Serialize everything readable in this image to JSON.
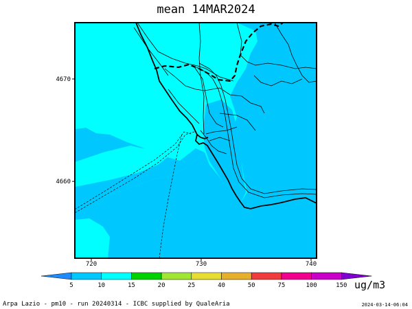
{
  "title": "mean 14MAR2024",
  "map": {
    "y_axis_ticks": [
      {
        "value": 4670,
        "label": "4670"
      },
      {
        "value": 4660,
        "label": "4660"
      }
    ],
    "x_axis_ticks": [
      {
        "value": 720,
        "label": "720"
      },
      {
        "value": 730,
        "label": "730"
      },
      {
        "value": 740,
        "label": "740"
      }
    ],
    "x_range": [
      718.5,
      740.5
    ],
    "y_range": [
      4652.5,
      4675.5
    ]
  },
  "colorbar": {
    "labels": [
      "5",
      "10",
      "15",
      "20",
      "25",
      "40",
      "50",
      "75",
      "100",
      "150"
    ],
    "colors": [
      "#00c8ff",
      "#00ffff",
      "#00d200",
      "#a0e632",
      "#e6dc32",
      "#e6af2d",
      "#f03c3c",
      "#f0008c",
      "#c800c8",
      "#8000d2"
    ],
    "low_color": "#1e8cff",
    "unit": "ug/m3"
  },
  "footer": {
    "left": "Arpa Lazio - pm10 - run 20240314 - ICBC supplied by QualeAria",
    "right": "2024-03-14-06:04"
  }
}
